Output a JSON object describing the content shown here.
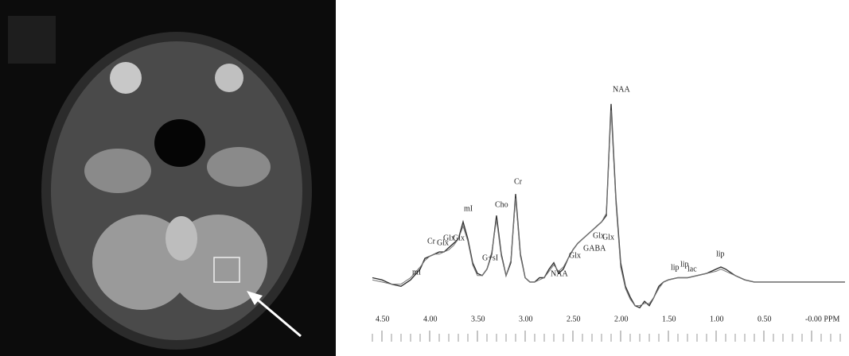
{
  "chart_data": {
    "type": "line",
    "x": [
      4.6,
      4.5,
      4.4,
      4.3,
      4.2,
      4.1,
      4.05,
      4.0,
      3.95,
      3.9,
      3.85,
      3.8,
      3.75,
      3.7,
      3.65,
      3.6,
      3.55,
      3.5,
      3.45,
      3.4,
      3.35,
      3.3,
      3.25,
      3.2,
      3.15,
      3.1,
      3.05,
      3.0,
      2.95,
      2.9,
      2.85,
      2.8,
      2.75,
      2.7,
      2.65,
      2.6,
      2.55,
      2.5,
      2.45,
      2.4,
      2.35,
      2.3,
      2.25,
      2.2,
      2.15,
      2.1,
      2.05,
      2.0,
      1.95,
      1.9,
      1.85,
      1.8,
      1.75,
      1.7,
      1.65,
      1.6,
      1.55,
      1.5,
      1.4,
      1.3,
      1.2,
      1.1,
      1.0,
      0.95,
      0.9,
      0.8,
      0.7,
      0.6,
      0.5,
      0.4,
      0.3,
      0.2,
      0.1,
      0.0,
      -0.1,
      -0.2,
      -0.3,
      -0.35
    ],
    "series": [
      {
        "color": "#333333",
        "values": [
          15,
          14,
          12,
          11,
          14,
          19,
          24,
          25,
          26,
          27,
          27,
          29,
          31,
          33,
          41,
          33,
          22,
          17,
          16,
          19,
          26,
          44,
          26,
          16,
          22,
          54,
          26,
          15,
          13,
          13,
          15,
          15,
          19,
          22,
          17,
          19,
          24,
          28,
          31,
          33,
          35,
          37,
          39,
          41,
          44,
          96,
          52,
          22,
          11,
          6,
          2,
          1,
          4,
          2,
          6,
          11,
          13,
          14,
          15,
          15,
          16,
          17,
          19,
          20,
          19,
          16,
          14,
          13,
          13,
          13,
          13,
          13,
          13,
          13,
          13,
          13,
          13,
          13
        ]
      },
      {
        "color": "#777777",
        "values": [
          14,
          13,
          12,
          12,
          15,
          20,
          23,
          25,
          26,
          26,
          27,
          28,
          30,
          33,
          39,
          32,
          21,
          16,
          16,
          19,
          27,
          42,
          25,
          16,
          23,
          52,
          25,
          15,
          13,
          13,
          14,
          15,
          18,
          21,
          18,
          20,
          24,
          28,
          31,
          33,
          35,
          37,
          39,
          41,
          45,
          93,
          50,
          20,
          10,
          5,
          2,
          2,
          3,
          3,
          6,
          10,
          13,
          14,
          15,
          15,
          16,
          17,
          18,
          19,
          18,
          16,
          14,
          13,
          13,
          13,
          13,
          13,
          13,
          13,
          13,
          13,
          13,
          13
        ]
      }
    ],
    "xlim": [
      4.6,
      -0.375
    ],
    "ylim": [
      0,
      100
    ],
    "xticks": [
      {
        "value": 4.5,
        "label": "4.50"
      },
      {
        "value": 4.0,
        "label": "4.00"
      },
      {
        "value": 3.5,
        "label": "3.50"
      },
      {
        "value": 3.0,
        "label": "3.00"
      },
      {
        "value": 2.5,
        "label": "2.50"
      },
      {
        "value": 2.0,
        "label": "2.00"
      },
      {
        "value": 1.5,
        "label": "1.50"
      },
      {
        "value": 1.0,
        "label": "1.00"
      },
      {
        "value": 0.5,
        "label": "0.50"
      },
      {
        "value": 0,
        "label": "-0.00 PPM"
      }
    ],
    "minor_xticks": [
      4.6,
      4.4,
      4.3,
      4.2,
      4.1,
      3.9,
      3.8,
      3.7,
      3.6,
      3.4,
      3.3,
      3.2,
      3.1,
      2.9,
      2.8,
      2.7,
      2.6,
      2.4,
      2.3,
      2.2,
      2.1,
      1.9,
      1.8,
      1.7,
      1.6,
      1.4,
      1.3,
      1.2,
      1.1,
      0.9,
      0.8,
      0.7,
      0.6,
      0.4,
      0.3,
      0.2,
      0.1,
      -0.1,
      -0.2,
      -0.3
    ],
    "annotations": [
      "NAA",
      "Cr",
      "Cho",
      "mI",
      "Cr",
      "Glx",
      "Glx",
      "Glx",
      "G+sI",
      "NAA",
      "Glx",
      "GABA",
      "Glx",
      "Glx",
      "mI",
      "lip",
      "lip",
      "lac",
      "lip"
    ]
  }
}
